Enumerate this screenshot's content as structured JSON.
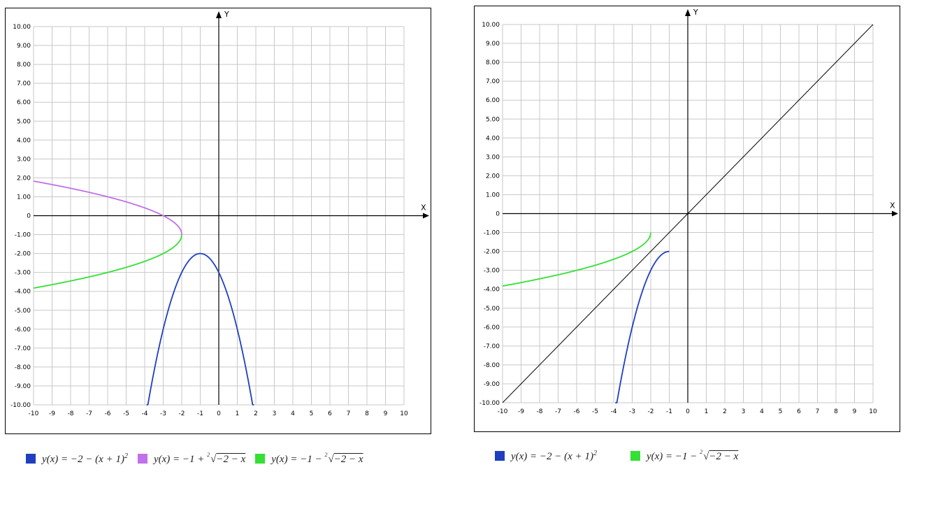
{
  "colors": {
    "blue": "#1f3fbf",
    "purple": "#c070e8",
    "green": "#33e033",
    "line": "#000000",
    "grid": "#c8c8c8"
  },
  "chart_data": [
    {
      "type": "line",
      "xlim": [
        -10,
        10
      ],
      "ylim": [
        -10,
        10
      ],
      "grid": true,
      "xlabel": "X",
      "ylabel": "Y",
      "xticks": [
        "-10",
        "-9",
        "-8",
        "-7",
        "-6",
        "-5",
        "-4",
        "-3",
        "-2",
        "-1",
        "0",
        "1",
        "2",
        "3",
        "4",
        "5",
        "6",
        "7",
        "8",
        "9",
        "10"
      ],
      "yticks": [
        "10.00",
        "9.00",
        "8.00",
        "7.00",
        "6.00",
        "5.00",
        "4.00",
        "3.00",
        "2.00",
        "1.00",
        "0",
        "-1.00",
        "-2.00",
        "-3.00",
        "-4.00",
        "-5.00",
        "-6.00",
        "-7.00",
        "-8.00",
        "-9.00",
        "-10.00"
      ],
      "series": [
        {
          "name": "y(x) = −2 − (x + 1)^2",
          "color": "blue",
          "fn": "-2-(x+1)^2",
          "domain": [
            -10,
            10
          ]
        },
        {
          "name": "y(x) = −1 + ²√(−2 − x)",
          "color": "purple",
          "fn": "-1+sqrt(-2-x)",
          "domain": [
            -10,
            -2
          ]
        },
        {
          "name": "y(x) = −1 − ²√(−2 − x)",
          "color": "green",
          "fn": "-1-sqrt(-2-x)",
          "domain": [
            -10,
            -2
          ]
        }
      ],
      "legend": "bottom"
    },
    {
      "type": "line",
      "xlim": [
        -10,
        10
      ],
      "ylim": [
        -10,
        10
      ],
      "grid": true,
      "xlabel": "X",
      "ylabel": "Y",
      "xticks": [
        "-10",
        "-9",
        "-8",
        "-7",
        "-6",
        "-5",
        "-4",
        "-3",
        "-2",
        "-1",
        "0",
        "1",
        "2",
        "3",
        "4",
        "5",
        "6",
        "7",
        "8",
        "9",
        "10"
      ],
      "yticks": [
        "10.00",
        "9.00",
        "8.00",
        "7.00",
        "6.00",
        "5.00",
        "4.00",
        "3.00",
        "2.00",
        "1.00",
        "0",
        "-1.00",
        "-2.00",
        "-3.00",
        "-4.00",
        "-5.00",
        "-6.00",
        "-7.00",
        "-8.00",
        "-9.00",
        "-10.00"
      ],
      "series": [
        {
          "name": "y(x) = −2 − (x + 1)^2",
          "color": "blue",
          "fn": "-2-(x+1)^2",
          "domain": [
            -10,
            -1
          ]
        },
        {
          "name": "y(x) = −1 − ²√(−2 − x)",
          "color": "green",
          "fn": "-1-sqrt(-2-x)",
          "domain": [
            -10,
            -2
          ]
        },
        {
          "name": "",
          "color": "line",
          "fn": "x",
          "domain": [
            -10,
            10
          ]
        }
      ],
      "legend": "bottom"
    }
  ],
  "legend1": [
    {
      "color": "blue",
      "prefix": "y(x) = −2 − (x + 1)",
      "sup": "2"
    },
    {
      "color": "purple",
      "prefix": "y(x) = −1 + ",
      "index": "2",
      "radicand": "−2 − x"
    },
    {
      "color": "green",
      "prefix": "y(x) = −1 − ",
      "index": "2",
      "radicand": "−2 − x"
    }
  ],
  "legend2": [
    {
      "color": "blue",
      "prefix": "y(x) = −2 − (x + 1)",
      "sup": "2"
    },
    {
      "color": "green",
      "prefix": "y(x) = −1 − ",
      "index": "2",
      "radicand": "−2 − x"
    }
  ]
}
